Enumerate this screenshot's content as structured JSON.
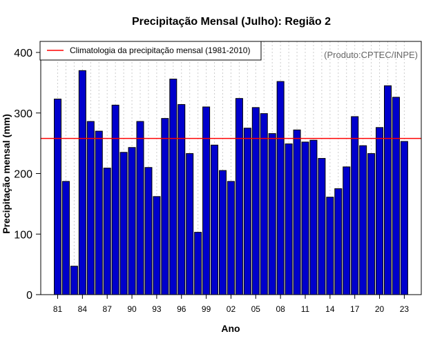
{
  "chart_data": {
    "type": "bar",
    "title": "Precipitação Mensal (Julho): Região 2",
    "xlabel": "Ano",
    "ylabel": "Precipitação mensal (mm)",
    "ylim": [
      0,
      400
    ],
    "yticks": [
      0,
      100,
      200,
      300,
      400
    ],
    "grid": "vertical-dotted",
    "legend_position": "top-left",
    "credit": "(Produto:CPTEC/INPE)",
    "categories": [
      1981,
      1982,
      1983,
      1984,
      1985,
      1986,
      1987,
      1988,
      1989,
      1990,
      1991,
      1992,
      1993,
      1994,
      1995,
      1996,
      1997,
      1998,
      1999,
      2000,
      2001,
      2002,
      2003,
      2004,
      2005,
      2006,
      2007,
      2008,
      2009,
      2010,
      2011,
      2012,
      2013,
      2014,
      2015,
      2016,
      2017,
      2018,
      2019,
      2020,
      2021,
      2022,
      2023
    ],
    "xtick_labels": [
      "81",
      "84",
      "87",
      "90",
      "93",
      "96",
      "99",
      "02",
      "05",
      "08",
      "11",
      "14",
      "17",
      "20",
      "23"
    ],
    "series": [
      {
        "name": "Precipitação mensal",
        "color": "#0000cc",
        "values": [
          323,
          187,
          47,
          370,
          286,
          270,
          209,
          313,
          235,
          243,
          286,
          210,
          162,
          291,
          356,
          314,
          233,
          103,
          310,
          247,
          205,
          187,
          324,
          275,
          309,
          299,
          266,
          352,
          249,
          272,
          252,
          255,
          225,
          161,
          175,
          211,
          294,
          246,
          233,
          276,
          345,
          326,
          253
        ]
      }
    ],
    "climatology": {
      "label": "Climatologia da precipitação mensal (1981-2010)",
      "value": 258,
      "color": "#ff0000"
    },
    "bar_edge_color": "#000000"
  }
}
